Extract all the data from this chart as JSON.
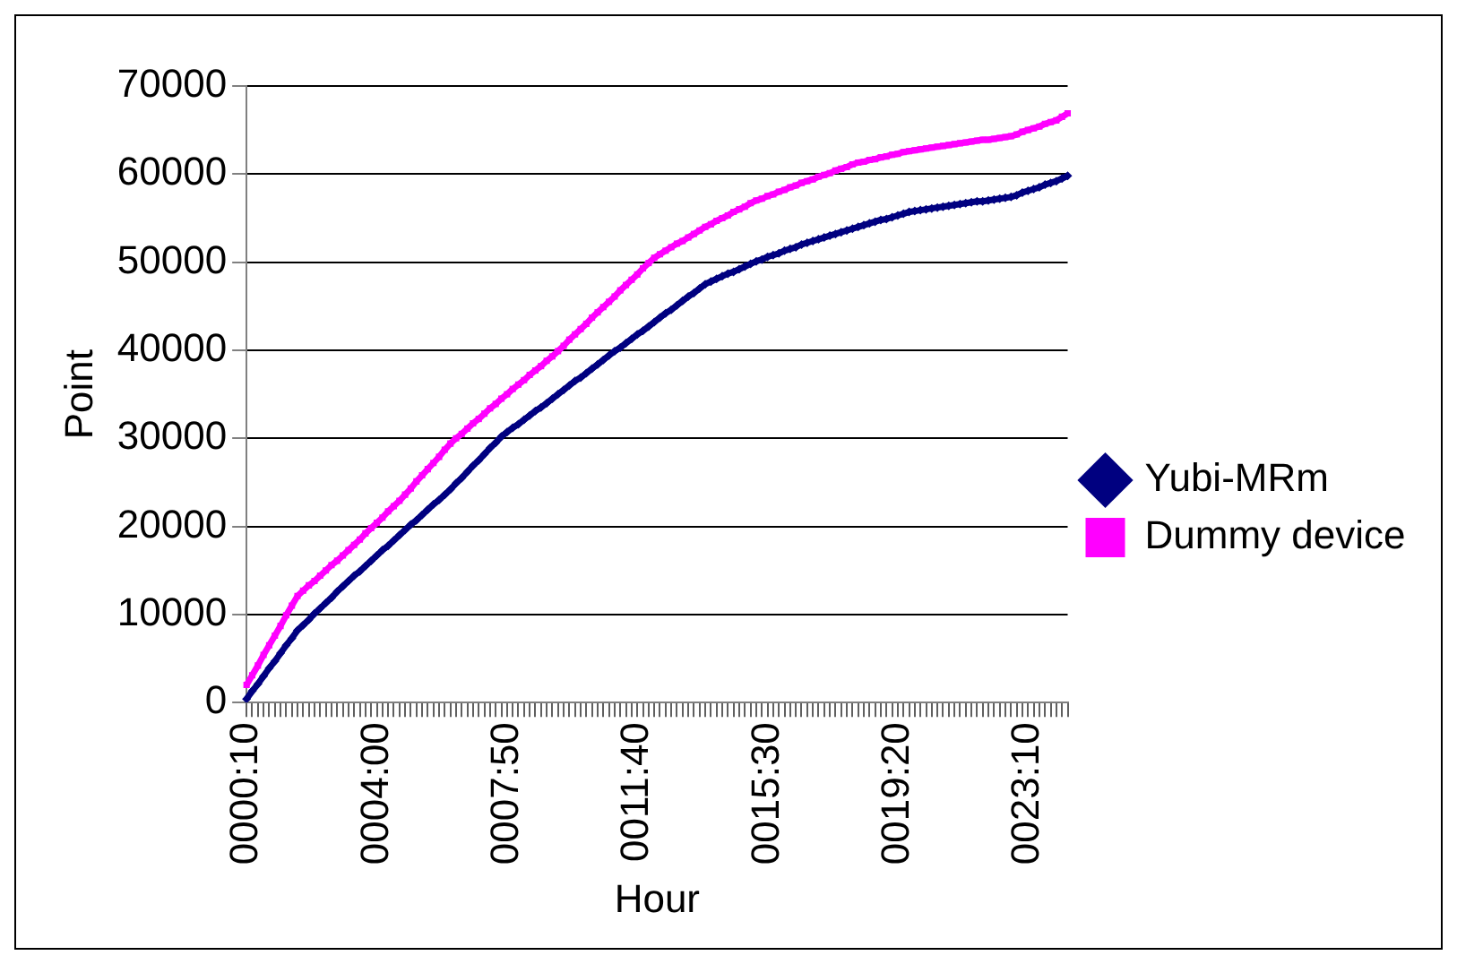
{
  "chart_data": {
    "type": "line",
    "xlabel": "Hour",
    "ylabel": "Point",
    "categories": [
      "0000:10",
      null,
      null,
      null,
      null,
      null,
      null,
      null,
      null,
      null,
      null,
      null,
      null,
      null,
      null,
      null,
      null,
      null,
      null,
      null,
      null,
      null,
      null,
      "0004:00",
      null,
      null,
      null,
      null,
      null,
      null,
      null,
      null,
      null,
      null,
      null,
      null,
      null,
      null,
      null,
      null,
      null,
      null,
      null,
      null,
      null,
      null,
      "0007:50",
      null,
      null,
      null,
      null,
      null,
      null,
      null,
      null,
      null,
      null,
      null,
      null,
      null,
      null,
      null,
      null,
      null,
      null,
      null,
      null,
      null,
      null,
      "0011:40",
      null,
      null,
      null,
      null,
      null,
      null,
      null,
      null,
      null,
      null,
      null,
      null,
      null,
      null,
      null,
      null,
      null,
      null,
      null,
      null,
      null,
      null,
      "0015:30",
      null,
      null,
      null,
      null,
      null,
      null,
      null,
      null,
      null,
      null,
      null,
      null,
      null,
      null,
      null,
      null,
      null,
      null,
      null,
      null,
      null,
      null,
      "0019:20",
      null,
      null,
      null,
      null,
      null,
      null,
      null,
      null,
      null,
      null,
      null,
      null,
      null,
      null,
      null,
      null,
      null,
      null,
      null,
      null,
      null,
      null,
      "0023:10",
      null,
      null,
      null,
      null,
      null,
      null,
      null
    ],
    "series": [
      {
        "name": "Yubi-MRm",
        "color": "#000080",
        "marker": "diamond",
        "values": [
          400,
          1300,
          2100,
          3000,
          3900,
          4700,
          5600,
          6500,
          7300,
          8200,
          8800,
          9400,
          10100,
          10700,
          11300,
          11900,
          12600,
          13200,
          13800,
          14400,
          14900,
          15500,
          16100,
          16700,
          17300,
          17800,
          18400,
          19000,
          19600,
          20200,
          20700,
          21300,
          21900,
          22500,
          23000,
          23600,
          24200,
          24900,
          25500,
          26200,
          26900,
          27500,
          28200,
          28900,
          29500,
          30200,
          30700,
          31200,
          31600,
          32100,
          32600,
          33100,
          33500,
          34000,
          34500,
          35000,
          35500,
          36000,
          36500,
          36900,
          37400,
          37900,
          38400,
          38900,
          39400,
          39900,
          40300,
          40800,
          41300,
          41800,
          42200,
          42700,
          43200,
          43700,
          44200,
          44600,
          45100,
          45600,
          46100,
          46500,
          47000,
          47500,
          47800,
          48100,
          48400,
          48700,
          48900,
          49200,
          49500,
          49800,
          50100,
          50300,
          50600,
          50800,
          51000,
          51300,
          51500,
          51700,
          52000,
          52200,
          52400,
          52600,
          52800,
          53000,
          53200,
          53400,
          53600,
          53800,
          54000,
          54200,
          54400,
          54600,
          54800,
          54900,
          55100,
          55300,
          55500,
          55700,
          55800,
          55900,
          56000,
          56100,
          56200,
          56300,
          56400,
          56500,
          56600,
          56700,
          56800,
          56900,
          56900,
          57000,
          57100,
          57200,
          57300,
          57400,
          57600,
          57900,
          58100,
          58300,
          58500,
          58800,
          59000,
          59200,
          59500,
          59800
        ]
      },
      {
        "name": "Dummy device",
        "color": "#ff00ff",
        "marker": "square",
        "values": [
          2000,
          3100,
          4200,
          5400,
          6500,
          7600,
          8700,
          9900,
          11000,
          12100,
          12700,
          13300,
          13800,
          14400,
          15000,
          15600,
          16100,
          16700,
          17300,
          17900,
          18500,
          19200,
          19800,
          20400,
          21000,
          21700,
          22300,
          22900,
          23600,
          24300,
          25100,
          25800,
          26500,
          27200,
          27900,
          28700,
          29400,
          30000,
          30500,
          31100,
          31700,
          32200,
          32800,
          33400,
          33900,
          34500,
          35000,
          35600,
          36100,
          36600,
          37200,
          37700,
          38200,
          38800,
          39300,
          39900,
          40500,
          41200,
          41800,
          42400,
          43000,
          43700,
          44300,
          44900,
          45500,
          46100,
          46800,
          47400,
          48000,
          48600,
          49300,
          49900,
          50500,
          50900,
          51300,
          51700,
          52100,
          52400,
          52800,
          53200,
          53600,
          54000,
          54300,
          54700,
          55000,
          55300,
          55700,
          56000,
          56300,
          56700,
          57000,
          57200,
          57500,
          57700,
          58000,
          58200,
          58500,
          58700,
          59000,
          59200,
          59400,
          59700,
          59900,
          60100,
          60400,
          60600,
          60800,
          61100,
          61300,
          61400,
          61600,
          61700,
          61900,
          62000,
          62200,
          62300,
          62500,
          62600,
          62700,
          62800,
          62900,
          63000,
          63100,
          63200,
          63300,
          63400,
          63500,
          63600,
          63700,
          63800,
          63900,
          63900,
          64000,
          64100,
          64200,
          64300,
          64500,
          64800,
          65000,
          65200,
          65400,
          65700,
          65900,
          66100,
          66500,
          66900
        ]
      }
    ],
    "ylim": [
      0,
      70000
    ],
    "yticks": [
      0,
      10000,
      20000,
      30000,
      40000,
      50000,
      60000,
      70000
    ],
    "grid": "y",
    "legend": "right"
  }
}
